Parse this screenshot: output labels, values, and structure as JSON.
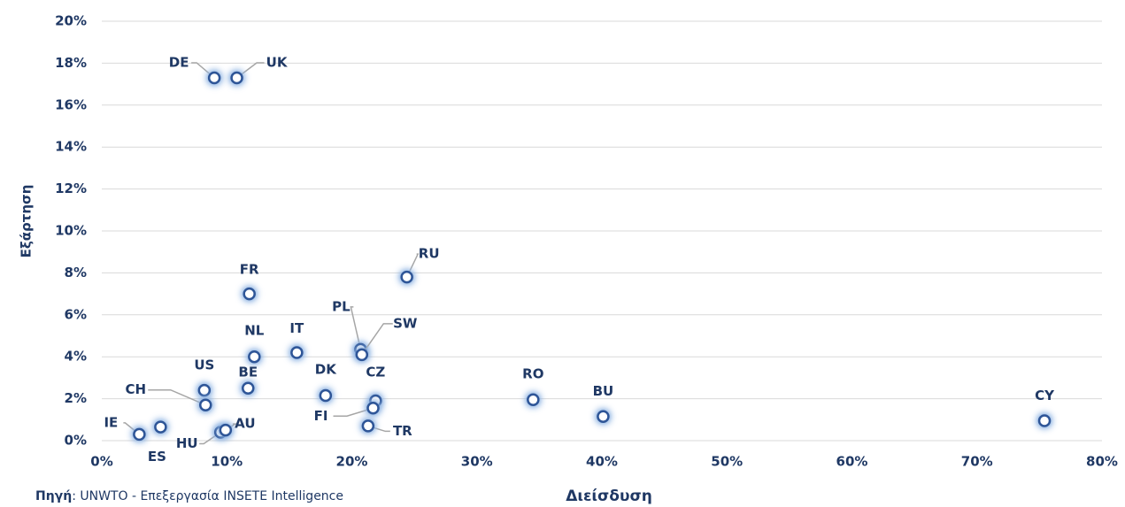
{
  "chart_data": {
    "type": "scatter",
    "x_label": "Διείσδυση",
    "y_label": "Εξάρτηση",
    "point_labels": [
      "DE",
      "UK",
      "FR",
      "RU",
      "PL",
      "SW",
      "IT",
      "NL",
      "US",
      "BE",
      "DK",
      "CZ",
      "FI",
      "TR",
      "CH",
      "RO",
      "BU",
      "CY",
      "IE",
      "ES",
      "HU",
      "AU"
    ],
    "x": [
      9.0,
      10.8,
      11.8,
      24.4,
      20.7,
      20.8,
      15.6,
      12.2,
      8.2,
      11.7,
      17.9,
      21.9,
      21.7,
      21.3,
      8.3,
      34.5,
      40.1,
      75.4,
      3.0,
      4.7,
      9.5,
      9.9
    ],
    "values": [
      17.3,
      17.3,
      7.0,
      7.8,
      4.35,
      4.1,
      4.2,
      4.0,
      2.4,
      2.5,
      2.15,
      1.9,
      1.55,
      0.7,
      1.7,
      1.95,
      1.15,
      0.95,
      0.3,
      0.65,
      0.4,
      0.5
    ],
    "color": "#2e5597",
    "xlim": [
      0,
      80
    ],
    "xticks": [
      {
        "value": 0,
        "label": "0%"
      },
      {
        "value": 10,
        "label": "10%"
      },
      {
        "value": 20,
        "label": "20%"
      },
      {
        "value": 30,
        "label": "30%"
      },
      {
        "value": 40,
        "label": "40%"
      },
      {
        "value": 50,
        "label": "50%"
      },
      {
        "value": 60,
        "label": "60%"
      },
      {
        "value": 70,
        "label": "70%"
      },
      {
        "value": 80,
        "label": "80%"
      }
    ],
    "ylim": [
      0,
      20
    ],
    "yticks": [
      {
        "value": 0,
        "label": "0%"
      },
      {
        "value": 2,
        "label": "2%"
      },
      {
        "value": 4,
        "label": "4%"
      },
      {
        "value": 6,
        "label": "6%"
      },
      {
        "value": 8,
        "label": "8%"
      },
      {
        "value": 10,
        "label": "10%"
      },
      {
        "value": 12,
        "label": "12%"
      },
      {
        "value": 14,
        "label": "14%"
      },
      {
        "value": 16,
        "label": "16%"
      },
      {
        "value": 18,
        "label": "18%"
      },
      {
        "value": 20,
        "label": "20%"
      }
    ],
    "grid": true
  },
  "source_label": "Πηγή",
  "source_text": ": UNWTO - Επεξεργασία INSETE Intelligence"
}
